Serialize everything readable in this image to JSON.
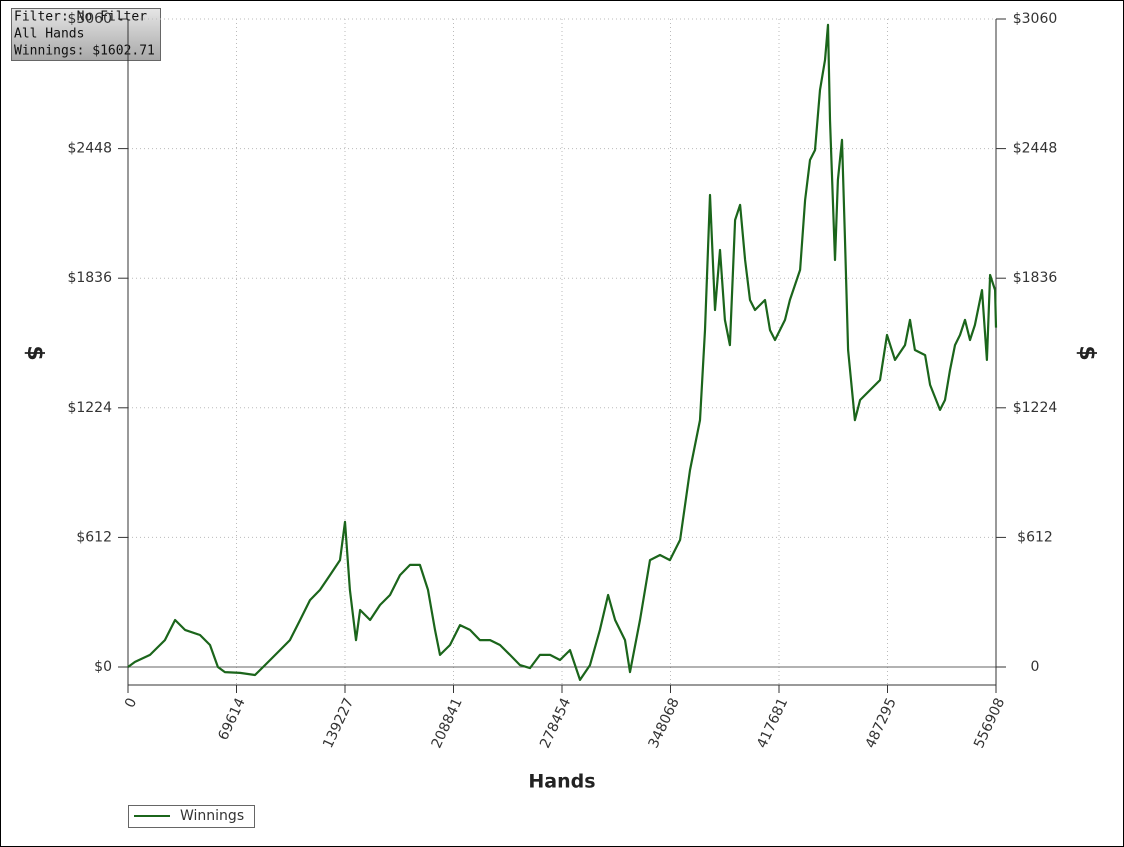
{
  "chart_data": {
    "type": "line",
    "info": [
      "Filter: No Filter",
      "All Hands",
      "Winnings: $1602.71"
    ],
    "xlabel": "Hands",
    "ylabel": "$",
    "y2label": "$",
    "x": [
      0,
      4500,
      14100,
      23700,
      30200,
      36600,
      46200,
      52600,
      57700,
      62200,
      71900,
      81500,
      87900,
      97500,
      103900,
      110400,
      116800,
      123200,
      129600,
      136000,
      139227,
      142400,
      146300,
      148900,
      155300,
      161700,
      168100,
      174500,
      180900,
      187300,
      192500,
      197000,
      200200,
      206600,
      213000,
      219400,
      225800,
      232300,
      238700,
      245100,
      251500,
      257900,
      264300,
      270800,
      277200,
      283600,
      290000,
      296400,
      302800,
      308000,
      312500,
      318900,
      322100,
      328500,
      334900,
      341300,
      347700,
      354200,
      360600,
      367000,
      370200,
      373400,
      376600,
      379800,
      383000,
      386200,
      389500,
      392700,
      395900,
      399100,
      402300,
      408700,
      411900,
      415100,
      421500,
      424700,
      431200,
      434400,
      437600,
      440800,
      444000,
      447200,
      449100,
      450400,
      453600,
      455500,
      458100,
      460000,
      462000,
      466400,
      469700,
      476100,
      482500,
      487000,
      492100,
      498500,
      501700,
      504900,
      511400,
      514600,
      521000,
      524200,
      527400,
      530600,
      533800,
      537000,
      540200,
      543400,
      547900,
      551100,
      553100,
      556300,
      556908
    ],
    "series": [
      {
        "name": "Winnings",
        "color": "#1b651b",
        "values": [
          0,
          24,
          57,
          127,
          222,
          175,
          151,
          104,
          0,
          -24,
          -28,
          -38,
          9,
          80,
          127,
          222,
          316,
          364,
          434,
          505,
          685,
          364,
          127,
          269,
          222,
          293,
          340,
          434,
          482,
          482,
          364,
          175,
          57,
          104,
          198,
          175,
          127,
          127,
          104,
          57,
          9,
          -5,
          57,
          57,
          33,
          80,
          -61,
          9,
          175,
          340,
          222,
          127,
          -24,
          222,
          505,
          529,
          505,
          600,
          930,
          1166,
          1591,
          2229,
          1686,
          1969,
          1639,
          1520,
          2111,
          2182,
          1922,
          1733,
          1686,
          1733,
          1591,
          1544,
          1639,
          1733,
          1875,
          2205,
          2394,
          2441,
          2725,
          2866,
          3032,
          2583,
          1922,
          2300,
          2489,
          2016,
          1497,
          1166,
          1261,
          1308,
          1355,
          1568,
          1450,
          1520,
          1639,
          1497,
          1473,
          1332,
          1214,
          1261,
          1402,
          1520,
          1568,
          1639,
          1544,
          1615,
          1780,
          1450,
          1851,
          1780,
          1602.71
        ]
      }
    ],
    "xlim": [
      0,
      556908
    ],
    "xticks": [
      0,
      69614,
      139227,
      208841,
      278454,
      348068,
      417681,
      487295,
      556908
    ],
    "ylim": [
      -85,
      3060
    ],
    "yticks": [
      {
        "value": 0,
        "label": "$0"
      },
      {
        "value": 612,
        "label": "$612"
      },
      {
        "value": 1224,
        "label": "$1224"
      },
      {
        "value": 1836,
        "label": "$1836"
      },
      {
        "value": 2448,
        "label": "$2448"
      },
      {
        "value": 3060,
        "label": "$3060"
      }
    ],
    "y2lim": [
      -85,
      3060
    ],
    "y2ticks": [
      {
        "value": 0,
        "label": "0"
      },
      {
        "value": 612,
        "label": "$612"
      },
      {
        "value": 1224,
        "label": "$1224"
      },
      {
        "value": 1836,
        "label": "$1836"
      },
      {
        "value": 2448,
        "label": "$2448"
      },
      {
        "value": 3060,
        "label": "$3060"
      }
    ],
    "grid": true,
    "legend": "bottom-left"
  }
}
